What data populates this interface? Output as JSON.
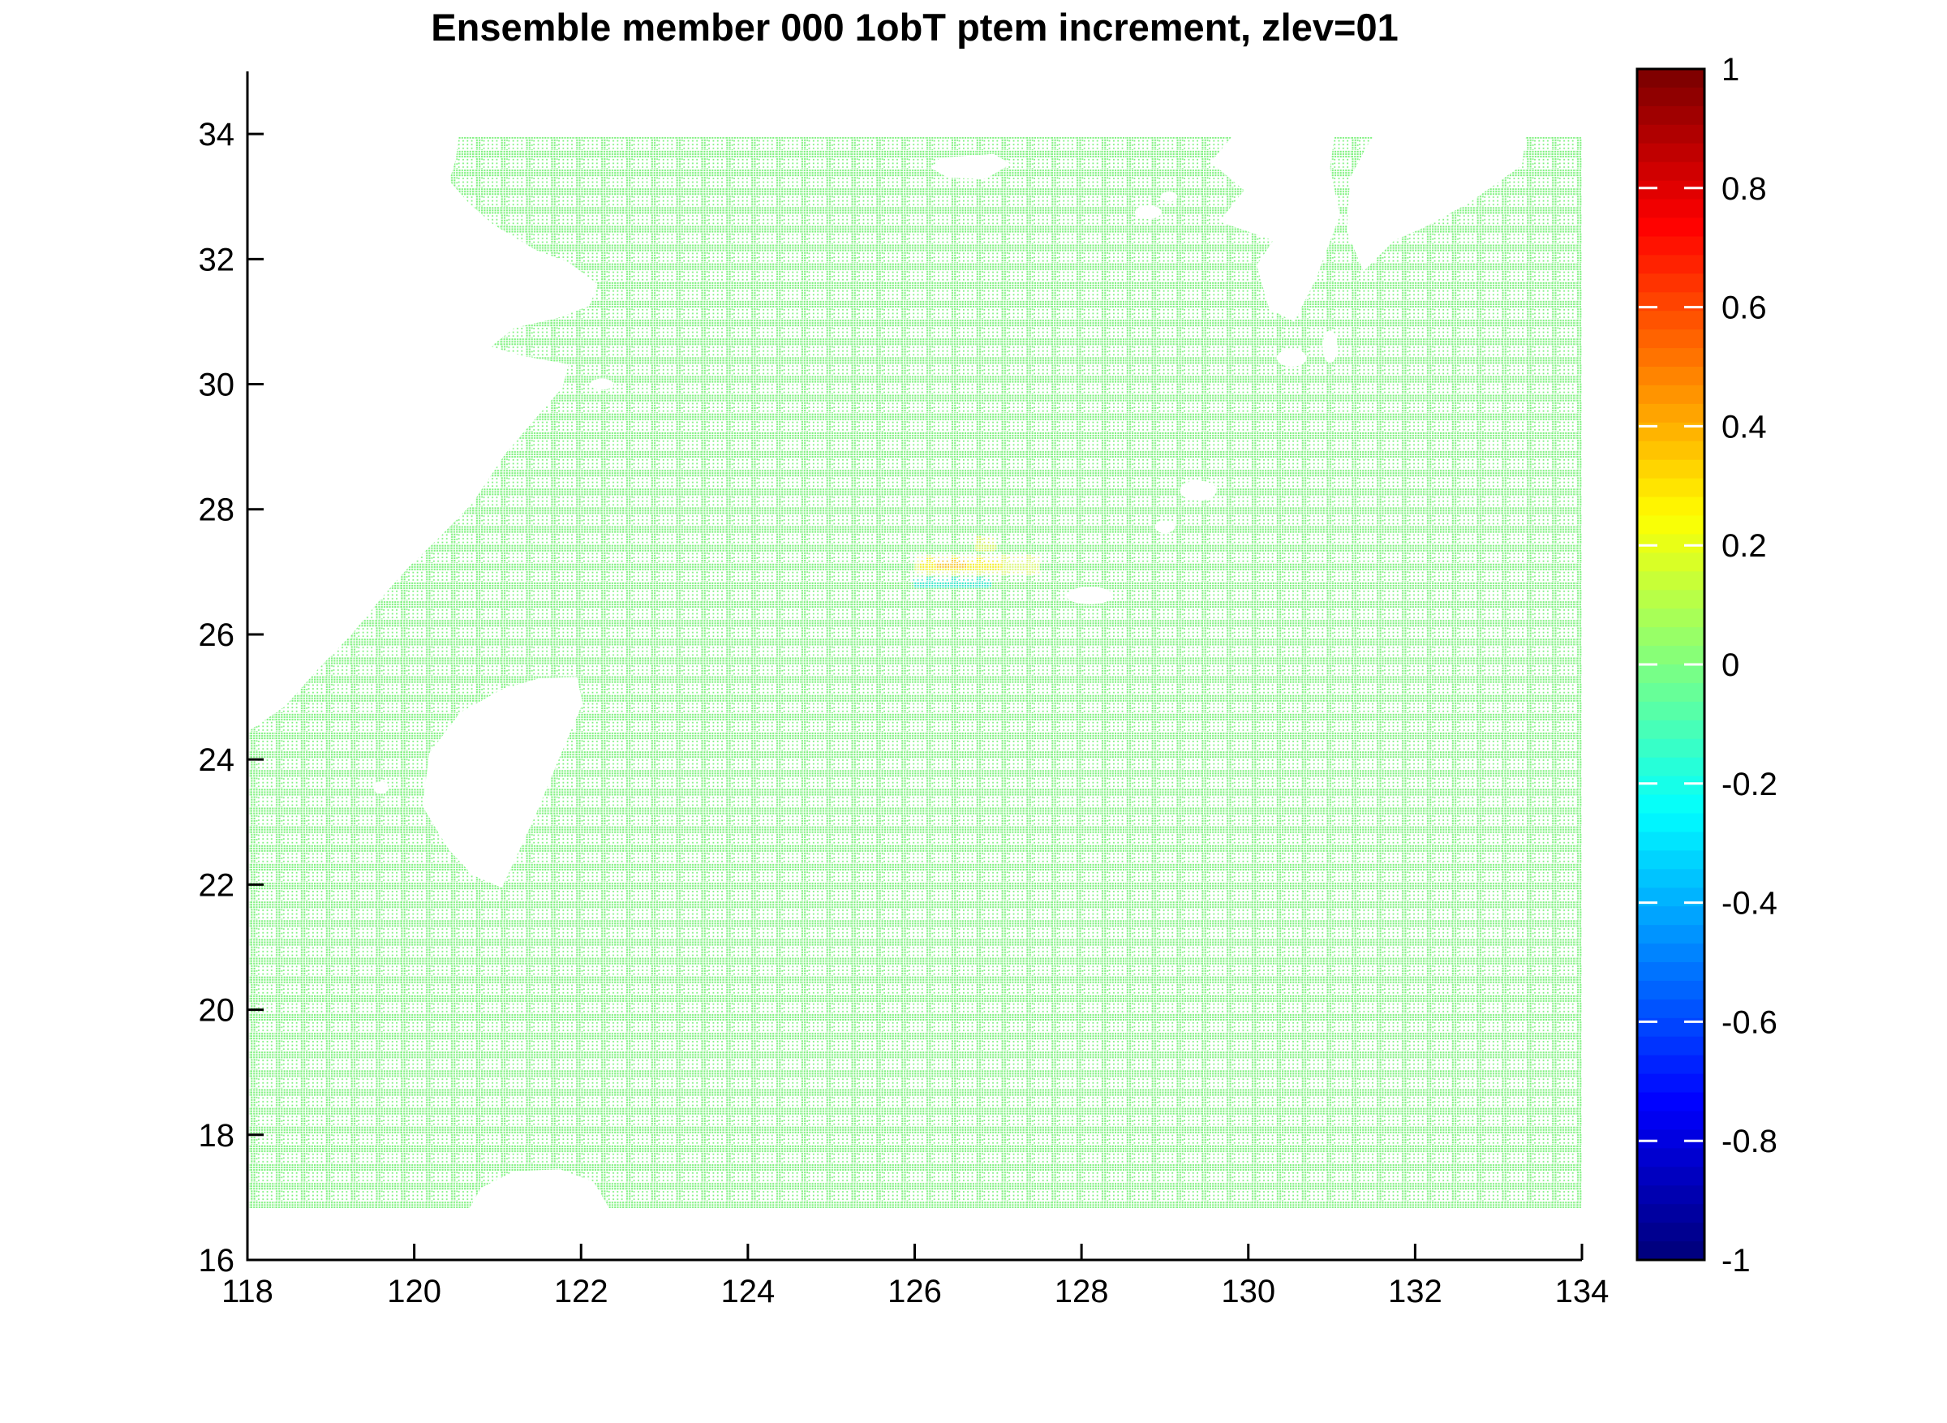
{
  "figure": {
    "title": "Ensemble member 000 1obT ptem increment, zlev=01"
  },
  "chart_data": {
    "type": "heatmap",
    "title": "Ensemble member 000 1obT ptem increment, zlev=01",
    "xlabel": "",
    "ylabel": "",
    "x_axis": {
      "tick_values": [
        118,
        120,
        122,
        124,
        126,
        128,
        130,
        132,
        134
      ],
      "tick_labels": [
        "118",
        "120",
        "122",
        "124",
        "126",
        "128",
        "130",
        "132",
        "134"
      ],
      "range": [
        118,
        134
      ]
    },
    "y_axis": {
      "tick_values": [
        16,
        18,
        20,
        22,
        24,
        26,
        28,
        30,
        32,
        34
      ],
      "tick_labels": [
        "16",
        "18",
        "20",
        "22",
        "24",
        "26",
        "28",
        "30",
        "32",
        "34"
      ],
      "range": [
        16,
        35
      ]
    },
    "colorbar": {
      "colormap": "jet",
      "levels": 64,
      "clim": [
        -1,
        1
      ],
      "tick_values": [
        1,
        0.8,
        0.6,
        0.4,
        0.2,
        0,
        -0.2,
        -0.4,
        -0.6,
        -0.8,
        -1
      ],
      "tick_labels": [
        "1",
        "0.8",
        "0.6",
        "0.4",
        "0.2",
        "0",
        "-0.2",
        "-0.4",
        "-0.6",
        "-0.8",
        "-1"
      ]
    },
    "field": {
      "background_value": 0,
      "background_color": "#7df17d",
      "description": "potential temperature increment; ~0 everywhere except a small dipole near 126.5E 27N"
    },
    "data_domain": {
      "lon": [
        118,
        134
      ],
      "lat": [
        16.83,
        33.95
      ]
    },
    "anomalies": [
      {
        "name": "halo",
        "lon": [
          126.0,
          127.5
        ],
        "lat": [
          26.95,
          27.28
        ],
        "value": 0.1,
        "color": "#dcf77e"
      },
      {
        "name": "warm-band",
        "lon": [
          126.05,
          127.05
        ],
        "lat": [
          27.03,
          27.22
        ],
        "value": 0.25,
        "color": "#f2ef2a"
      },
      {
        "name": "warm-core",
        "lon": [
          126.25,
          126.62
        ],
        "lat": [
          27.05,
          27.2
        ],
        "value": 0.35,
        "color": "#f5c832"
      },
      {
        "name": "upper-patch",
        "lon": [
          126.72,
          126.98
        ],
        "lat": [
          27.33,
          27.58
        ],
        "value": 0.15,
        "color": "#cdf25c"
      },
      {
        "name": "cold-band",
        "lon": [
          125.98,
          126.92
        ],
        "lat": [
          26.74,
          26.92
        ],
        "value": -0.25,
        "color": "#3ae8c8"
      }
    ],
    "land_polygons": [
      {
        "name": "china-mainland",
        "pts": [
          [
            117.9,
            34.15
          ],
          [
            120.55,
            34.15
          ],
          [
            120.5,
            33.6
          ],
          [
            120.42,
            33.25
          ],
          [
            120.65,
            32.9
          ],
          [
            120.95,
            32.55
          ],
          [
            121.45,
            32.15
          ],
          [
            121.85,
            31.95
          ],
          [
            122.2,
            31.6
          ],
          [
            122.1,
            31.25
          ],
          [
            121.7,
            31.05
          ],
          [
            121.2,
            30.9
          ],
          [
            120.92,
            30.6
          ],
          [
            121.3,
            30.45
          ],
          [
            121.85,
            30.32
          ],
          [
            121.78,
            29.95
          ],
          [
            121.55,
            29.6
          ],
          [
            121.1,
            28.9
          ],
          [
            120.7,
            28.1
          ],
          [
            120.3,
            27.55
          ],
          [
            119.95,
            27.1
          ],
          [
            119.65,
            26.65
          ],
          [
            119.25,
            26.0
          ],
          [
            118.85,
            25.45
          ],
          [
            118.45,
            24.85
          ],
          [
            117.9,
            24.35
          ]
        ]
      },
      {
        "name": "taiwan",
        "pts": [
          [
            121.95,
            25.32
          ],
          [
            122.02,
            24.9
          ],
          [
            121.7,
            23.9
          ],
          [
            121.45,
            23.1
          ],
          [
            121.05,
            21.95
          ],
          [
            120.7,
            22.15
          ],
          [
            120.42,
            22.55
          ],
          [
            120.1,
            23.25
          ],
          [
            120.18,
            24.1
          ],
          [
            120.55,
            24.75
          ],
          [
            121.05,
            25.12
          ],
          [
            121.5,
            25.3
          ]
        ]
      },
      {
        "name": "jeju-island",
        "pts": [
          [
            126.3,
            33.62
          ],
          [
            126.95,
            33.68
          ],
          [
            127.15,
            33.52
          ],
          [
            126.85,
            33.28
          ],
          [
            126.4,
            33.3
          ],
          [
            126.2,
            33.45
          ]
        ]
      },
      {
        "name": "kyushu",
        "pts": [
          [
            129.95,
            34.15
          ],
          [
            131.05,
            34.15
          ],
          [
            130.98,
            33.45
          ],
          [
            131.1,
            32.7
          ],
          [
            130.8,
            31.65
          ],
          [
            130.55,
            31.0
          ],
          [
            130.25,
            31.2
          ],
          [
            130.1,
            31.9
          ],
          [
            130.3,
            32.3
          ],
          [
            129.65,
            32.6
          ],
          [
            129.95,
            33.1
          ],
          [
            129.55,
            33.55
          ],
          [
            129.8,
            33.95
          ]
        ]
      },
      {
        "name": "shikoku-honshu",
        "pts": [
          [
            131.6,
            34.15
          ],
          [
            133.35,
            34.15
          ],
          [
            133.28,
            33.5
          ],
          [
            132.65,
            32.9
          ],
          [
            132.1,
            32.5
          ],
          [
            131.75,
            32.3
          ],
          [
            131.38,
            31.8
          ],
          [
            131.18,
            32.45
          ],
          [
            131.22,
            33.3
          ],
          [
            131.42,
            33.8
          ]
        ]
      },
      {
        "name": "luzon-north-coast",
        "pts": [
          [
            120.65,
            16.8
          ],
          [
            120.8,
            17.15
          ],
          [
            121.2,
            17.42
          ],
          [
            121.75,
            17.45
          ],
          [
            122.15,
            17.25
          ],
          [
            122.35,
            16.8
          ]
        ]
      }
    ],
    "islands": [
      {
        "name": "amami-oshima",
        "cx": 129.4,
        "cy": 28.3,
        "rx": 0.22,
        "ry": 0.16
      },
      {
        "name": "tokunoshima",
        "cx": 129.0,
        "cy": 27.72,
        "rx": 0.12,
        "ry": 0.1
      },
      {
        "name": "okinawa",
        "cx": 128.1,
        "cy": 26.62,
        "rx": 0.28,
        "ry": 0.14
      },
      {
        "name": "yakushima",
        "cx": 130.52,
        "cy": 30.42,
        "rx": 0.18,
        "ry": 0.14
      },
      {
        "name": "tanegashima",
        "cx": 130.98,
        "cy": 30.6,
        "rx": 0.09,
        "ry": 0.26
      },
      {
        "name": "goto-1",
        "cx": 128.8,
        "cy": 32.75,
        "rx": 0.16,
        "ry": 0.11
      },
      {
        "name": "goto-2",
        "cx": 129.05,
        "cy": 33.0,
        "rx": 0.1,
        "ry": 0.08
      },
      {
        "name": "zhoushan",
        "cx": 122.25,
        "cy": 30.0,
        "rx": 0.14,
        "ry": 0.09
      },
      {
        "name": "penghu",
        "cx": 119.6,
        "cy": 23.55,
        "rx": 0.09,
        "ry": 0.1
      }
    ]
  }
}
